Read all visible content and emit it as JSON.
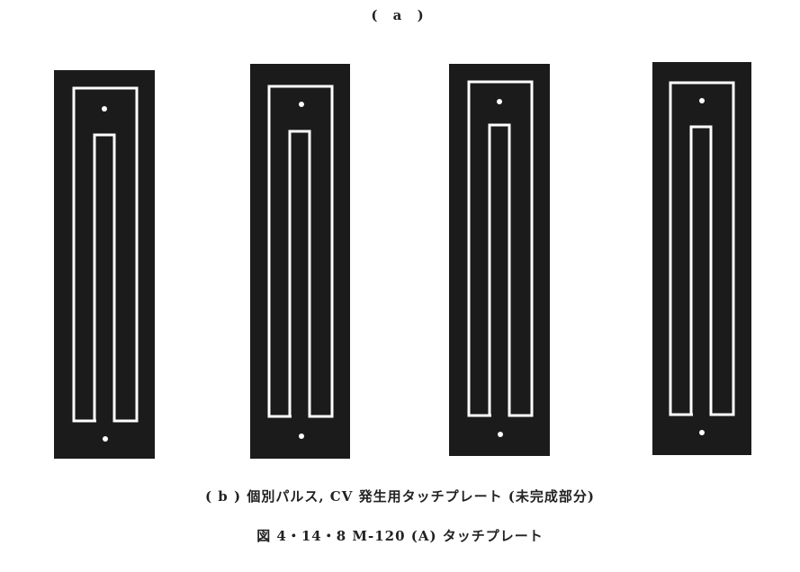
{
  "figure": {
    "part_a_label": "( a )",
    "part_b_caption": "( b ) 個別パルス, CV 発生用タッチプレート (未完成部分)",
    "figure_caption": "図 4・14・8  M-120 (A) タッチプレート"
  },
  "plates": [
    {
      "name": "touch-plate-1"
    },
    {
      "name": "touch-plate-2"
    },
    {
      "name": "touch-plate-3"
    },
    {
      "name": "touch-plate-4"
    }
  ],
  "colors": {
    "plate": "#1b1b1b",
    "trace": "#ffffff",
    "background": "#ffffff"
  }
}
